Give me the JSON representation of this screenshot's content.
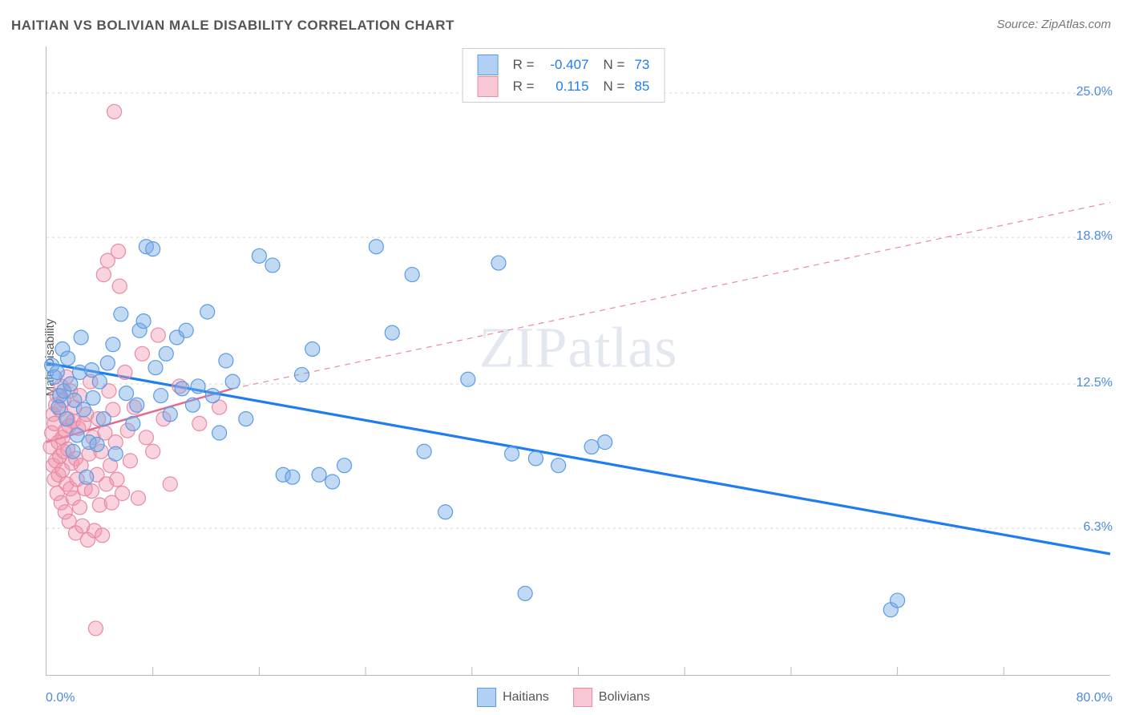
{
  "title": "HAITIAN VS BOLIVIAN MALE DISABILITY CORRELATION CHART",
  "source": "Source: ZipAtlas.com",
  "watermark": "ZIPatlas",
  "ylabel": "Male Disability",
  "chart": {
    "type": "scatter",
    "background_color": "#ffffff",
    "grid_color": "#d4d4d4",
    "axis_color": "#b8b8b8",
    "text_color": "#555555",
    "value_color": "#4a8be0",
    "title_fontsize": 17,
    "label_fontsize": 15,
    "tick_fontsize": 16,
    "xlim": [
      0,
      80
    ],
    "ylim": [
      0,
      27
    ],
    "x_tick_min": "0.0%",
    "x_tick_max": "80.0%",
    "x_minor_step": 8,
    "y_gridlines": [
      {
        "v": 25.0,
        "label": "25.0%"
      },
      {
        "v": 18.8,
        "label": "18.8%"
      },
      {
        "v": 12.5,
        "label": "12.5%"
      },
      {
        "v": 6.3,
        "label": "6.3%"
      }
    ],
    "stats_box": {
      "series": [
        {
          "swatch_fill": "#b2d0f3",
          "swatch_stroke": "#5a9be8",
          "r": "-0.407",
          "n": "73"
        },
        {
          "swatch_fill": "#f8c7d4",
          "swatch_stroke": "#e88ba4",
          "r": "0.115",
          "n": "85"
        }
      ]
    },
    "bottom_legend": [
      {
        "label": "Haitians",
        "swatch_fill": "#b2d0f3",
        "swatch_stroke": "#5a9be8"
      },
      {
        "label": "Bolivians",
        "swatch_fill": "#f8c7d4",
        "swatch_stroke": "#e88ba4"
      }
    ],
    "series": [
      {
        "name": "Haitians",
        "marker_fill": "rgba(120,170,230,0.45)",
        "marker_stroke": "#5a9be8",
        "marker_radius": 9,
        "trend": {
          "y_at_xmin": 13.4,
          "y_at_xmax": 5.2,
          "stroke": "#1e7df0",
          "width": 3.2,
          "dash": "none"
        },
        "points": [
          [
            0.4,
            13.3
          ],
          [
            0.6,
            12.8
          ],
          [
            0.8,
            13.0
          ],
          [
            0.9,
            11.5
          ],
          [
            1.0,
            12.0
          ],
          [
            1.2,
            14.0
          ],
          [
            1.3,
            12.2
          ],
          [
            1.5,
            11.0
          ],
          [
            1.6,
            13.6
          ],
          [
            1.8,
            12.5
          ],
          [
            2.0,
            9.6
          ],
          [
            2.1,
            11.8
          ],
          [
            2.3,
            10.3
          ],
          [
            2.5,
            13.0
          ],
          [
            2.6,
            14.5
          ],
          [
            2.8,
            11.4
          ],
          [
            3.0,
            8.5
          ],
          [
            3.2,
            10.0
          ],
          [
            3.4,
            13.1
          ],
          [
            3.5,
            11.9
          ],
          [
            3.8,
            9.9
          ],
          [
            4.0,
            12.6
          ],
          [
            4.3,
            11.0
          ],
          [
            4.6,
            13.4
          ],
          [
            5.0,
            14.2
          ],
          [
            5.2,
            9.5
          ],
          [
            5.6,
            15.5
          ],
          [
            6.0,
            12.1
          ],
          [
            6.5,
            10.8
          ],
          [
            6.8,
            11.6
          ],
          [
            7.0,
            14.8
          ],
          [
            7.3,
            15.2
          ],
          [
            7.5,
            18.4
          ],
          [
            8.0,
            18.3
          ],
          [
            8.2,
            13.2
          ],
          [
            8.6,
            12.0
          ],
          [
            9.0,
            13.8
          ],
          [
            9.3,
            11.2
          ],
          [
            9.8,
            14.5
          ],
          [
            10.2,
            12.3
          ],
          [
            10.5,
            14.8
          ],
          [
            11.0,
            11.6
          ],
          [
            11.4,
            12.4
          ],
          [
            12.1,
            15.6
          ],
          [
            12.5,
            12.0
          ],
          [
            13.0,
            10.4
          ],
          [
            13.5,
            13.5
          ],
          [
            14.0,
            12.6
          ],
          [
            15.0,
            11.0
          ],
          [
            16.0,
            18.0
          ],
          [
            17.0,
            17.6
          ],
          [
            17.8,
            8.6
          ],
          [
            18.5,
            8.5
          ],
          [
            19.2,
            12.9
          ],
          [
            20.0,
            14.0
          ],
          [
            20.5,
            8.6
          ],
          [
            21.5,
            8.3
          ],
          [
            22.4,
            9.0
          ],
          [
            24.8,
            18.4
          ],
          [
            26.0,
            14.7
          ],
          [
            27.5,
            17.2
          ],
          [
            28.4,
            9.6
          ],
          [
            30.0,
            7.0
          ],
          [
            31.7,
            12.7
          ],
          [
            34.0,
            17.7
          ],
          [
            35.0,
            9.5
          ],
          [
            36.0,
            3.5
          ],
          [
            36.8,
            9.3
          ],
          [
            38.5,
            9.0
          ],
          [
            41.0,
            9.8
          ],
          [
            42.0,
            10.0
          ],
          [
            63.5,
            2.8
          ],
          [
            64.0,
            3.2
          ]
        ]
      },
      {
        "name": "Bolivians",
        "marker_fill": "rgba(240,150,175,0.42)",
        "marker_stroke": "#e88ba4",
        "marker_radius": 9,
        "trend": {
          "solid": {
            "y_at_x0": 10.0,
            "x1": 14.0,
            "y_at_x1": 12.3,
            "stroke": "#e56a8d",
            "width": 2.5
          },
          "dashed_from_x": 14.0,
          "y_at_xmax": 20.3,
          "dash_stroke": "#e88ba4",
          "dash_width": 1.2
        },
        "points": [
          [
            0.3,
            9.8
          ],
          [
            0.4,
            10.4
          ],
          [
            0.5,
            9.0
          ],
          [
            0.5,
            11.2
          ],
          [
            0.6,
            8.4
          ],
          [
            0.6,
            10.8
          ],
          [
            0.7,
            9.2
          ],
          [
            0.7,
            11.6
          ],
          [
            0.8,
            7.8
          ],
          [
            0.8,
            12.0
          ],
          [
            0.9,
            10.0
          ],
          [
            0.9,
            8.6
          ],
          [
            1.0,
            11.4
          ],
          [
            1.0,
            9.4
          ],
          [
            1.1,
            12.4
          ],
          [
            1.1,
            7.4
          ],
          [
            1.2,
            10.2
          ],
          [
            1.2,
            8.8
          ],
          [
            1.3,
            11.8
          ],
          [
            1.3,
            9.6
          ],
          [
            1.4,
            7.0
          ],
          [
            1.4,
            10.5
          ],
          [
            1.5,
            12.8
          ],
          [
            1.5,
            8.2
          ],
          [
            1.6,
            9.7
          ],
          [
            1.6,
            11.0
          ],
          [
            1.7,
            6.6
          ],
          [
            1.7,
            10.7
          ],
          [
            1.8,
            8.0
          ],
          [
            1.8,
            12.2
          ],
          [
            1.9,
            9.1
          ],
          [
            2.0,
            10.9
          ],
          [
            2.0,
            7.6
          ],
          [
            2.1,
            11.5
          ],
          [
            2.2,
            6.1
          ],
          [
            2.2,
            9.3
          ],
          [
            2.3,
            8.4
          ],
          [
            2.4,
            10.6
          ],
          [
            2.5,
            7.2
          ],
          [
            2.5,
            12.0
          ],
          [
            2.6,
            9.0
          ],
          [
            2.7,
            6.4
          ],
          [
            2.8,
            10.8
          ],
          [
            2.9,
            8.0
          ],
          [
            3.0,
            11.2
          ],
          [
            3.1,
            5.8
          ],
          [
            3.2,
            9.5
          ],
          [
            3.3,
            12.6
          ],
          [
            3.4,
            7.9
          ],
          [
            3.5,
            10.2
          ],
          [
            3.6,
            6.2
          ],
          [
            3.7,
            2.0
          ],
          [
            3.8,
            8.6
          ],
          [
            3.9,
            11.0
          ],
          [
            4.0,
            7.3
          ],
          [
            4.1,
            9.6
          ],
          [
            4.2,
            6.0
          ],
          [
            4.3,
            17.2
          ],
          [
            4.4,
            10.4
          ],
          [
            4.5,
            8.2
          ],
          [
            4.6,
            17.8
          ],
          [
            4.7,
            12.2
          ],
          [
            4.8,
            9.0
          ],
          [
            4.9,
            7.4
          ],
          [
            5.0,
            11.4
          ],
          [
            5.1,
            24.2
          ],
          [
            5.2,
            10.0
          ],
          [
            5.3,
            8.4
          ],
          [
            5.4,
            18.2
          ],
          [
            5.5,
            16.7
          ],
          [
            5.7,
            7.8
          ],
          [
            5.9,
            13.0
          ],
          [
            6.1,
            10.5
          ],
          [
            6.3,
            9.2
          ],
          [
            6.6,
            11.5
          ],
          [
            6.9,
            7.6
          ],
          [
            7.2,
            13.8
          ],
          [
            7.5,
            10.2
          ],
          [
            8.0,
            9.6
          ],
          [
            8.4,
            14.6
          ],
          [
            8.8,
            11.0
          ],
          [
            9.3,
            8.2
          ],
          [
            10.0,
            12.4
          ],
          [
            11.5,
            10.8
          ],
          [
            13.0,
            11.5
          ]
        ]
      }
    ]
  }
}
